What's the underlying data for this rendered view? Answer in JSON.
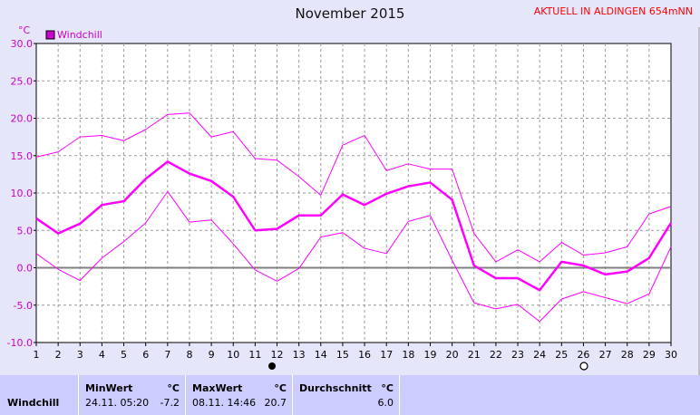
{
  "page": {
    "title": "November 2015",
    "station": "AKTUELL IN ALDINGEN 654mNN",
    "unit_label": "°C"
  },
  "chart_data": {
    "type": "line",
    "x": [
      1,
      2,
      3,
      4,
      5,
      6,
      7,
      8,
      9,
      10,
      11,
      12,
      13,
      14,
      15,
      16,
      17,
      18,
      19,
      20,
      21,
      22,
      23,
      24,
      25,
      26,
      27,
      28,
      29,
      30
    ],
    "ylim": [
      -10,
      30
    ],
    "yticks": [
      "30.0",
      "25.0",
      "20.0",
      "15.0",
      "10.0",
      "5.0",
      "0.0",
      "-5.0",
      "-10.0"
    ],
    "legend": [
      "Windchill"
    ],
    "series": [
      {
        "name": "Windchill",
        "role": "mean",
        "values": [
          6.6,
          4.6,
          5.9,
          8.4,
          8.9,
          11.9,
          14.2,
          12.6,
          11.6,
          9.5,
          5.0,
          5.2,
          7.0,
          7.0,
          9.8,
          8.4,
          9.9,
          10.9,
          11.4,
          9.1,
          0.3,
          -1.4,
          -1.4,
          -3.0,
          0.8,
          0.3,
          -0.9,
          -0.5,
          1.3,
          6.0
        ]
      },
      {
        "role": "max",
        "values": [
          14.8,
          15.5,
          17.5,
          17.7,
          17.0,
          18.5,
          20.5,
          20.7,
          17.5,
          18.2,
          14.6,
          14.4,
          12.2,
          9.7,
          16.4,
          17.7,
          13.0,
          13.9,
          13.2,
          13.2,
          4.6,
          0.8,
          2.4,
          0.8,
          3.4,
          1.7,
          2.0,
          2.8,
          7.2,
          8.2
        ]
      },
      {
        "role": "min",
        "values": [
          1.9,
          -0.2,
          -1.7,
          1.3,
          3.5,
          6.0,
          10.2,
          6.1,
          6.4,
          3.2,
          -0.3,
          -1.8,
          -0.1,
          4.1,
          4.7,
          2.6,
          1.9,
          6.2,
          7.0,
          1.0,
          -4.7,
          -5.5,
          -4.9,
          -7.2,
          -4.2,
          -3.2,
          -4.0,
          -4.8,
          -3.5,
          2.8
        ]
      }
    ]
  },
  "stats": {
    "row_label": "Windchill",
    "min_header": "MinWert",
    "min_unit": "°C",
    "min_when": "24.11.  05:20",
    "min_value": "-7.2",
    "max_header": "MaxWert",
    "max_unit": "°C",
    "max_when": "08.11.  14:46",
    "max_value": "20.7",
    "avg_header": "Durchschnitt",
    "avg_unit": "°C",
    "avg_value": "6.0"
  },
  "colors": {
    "line": "#ff00ff",
    "plot_bg": "#ffffff",
    "page_bg": "#e6e6fa",
    "stats_bg": "#ccccff"
  }
}
